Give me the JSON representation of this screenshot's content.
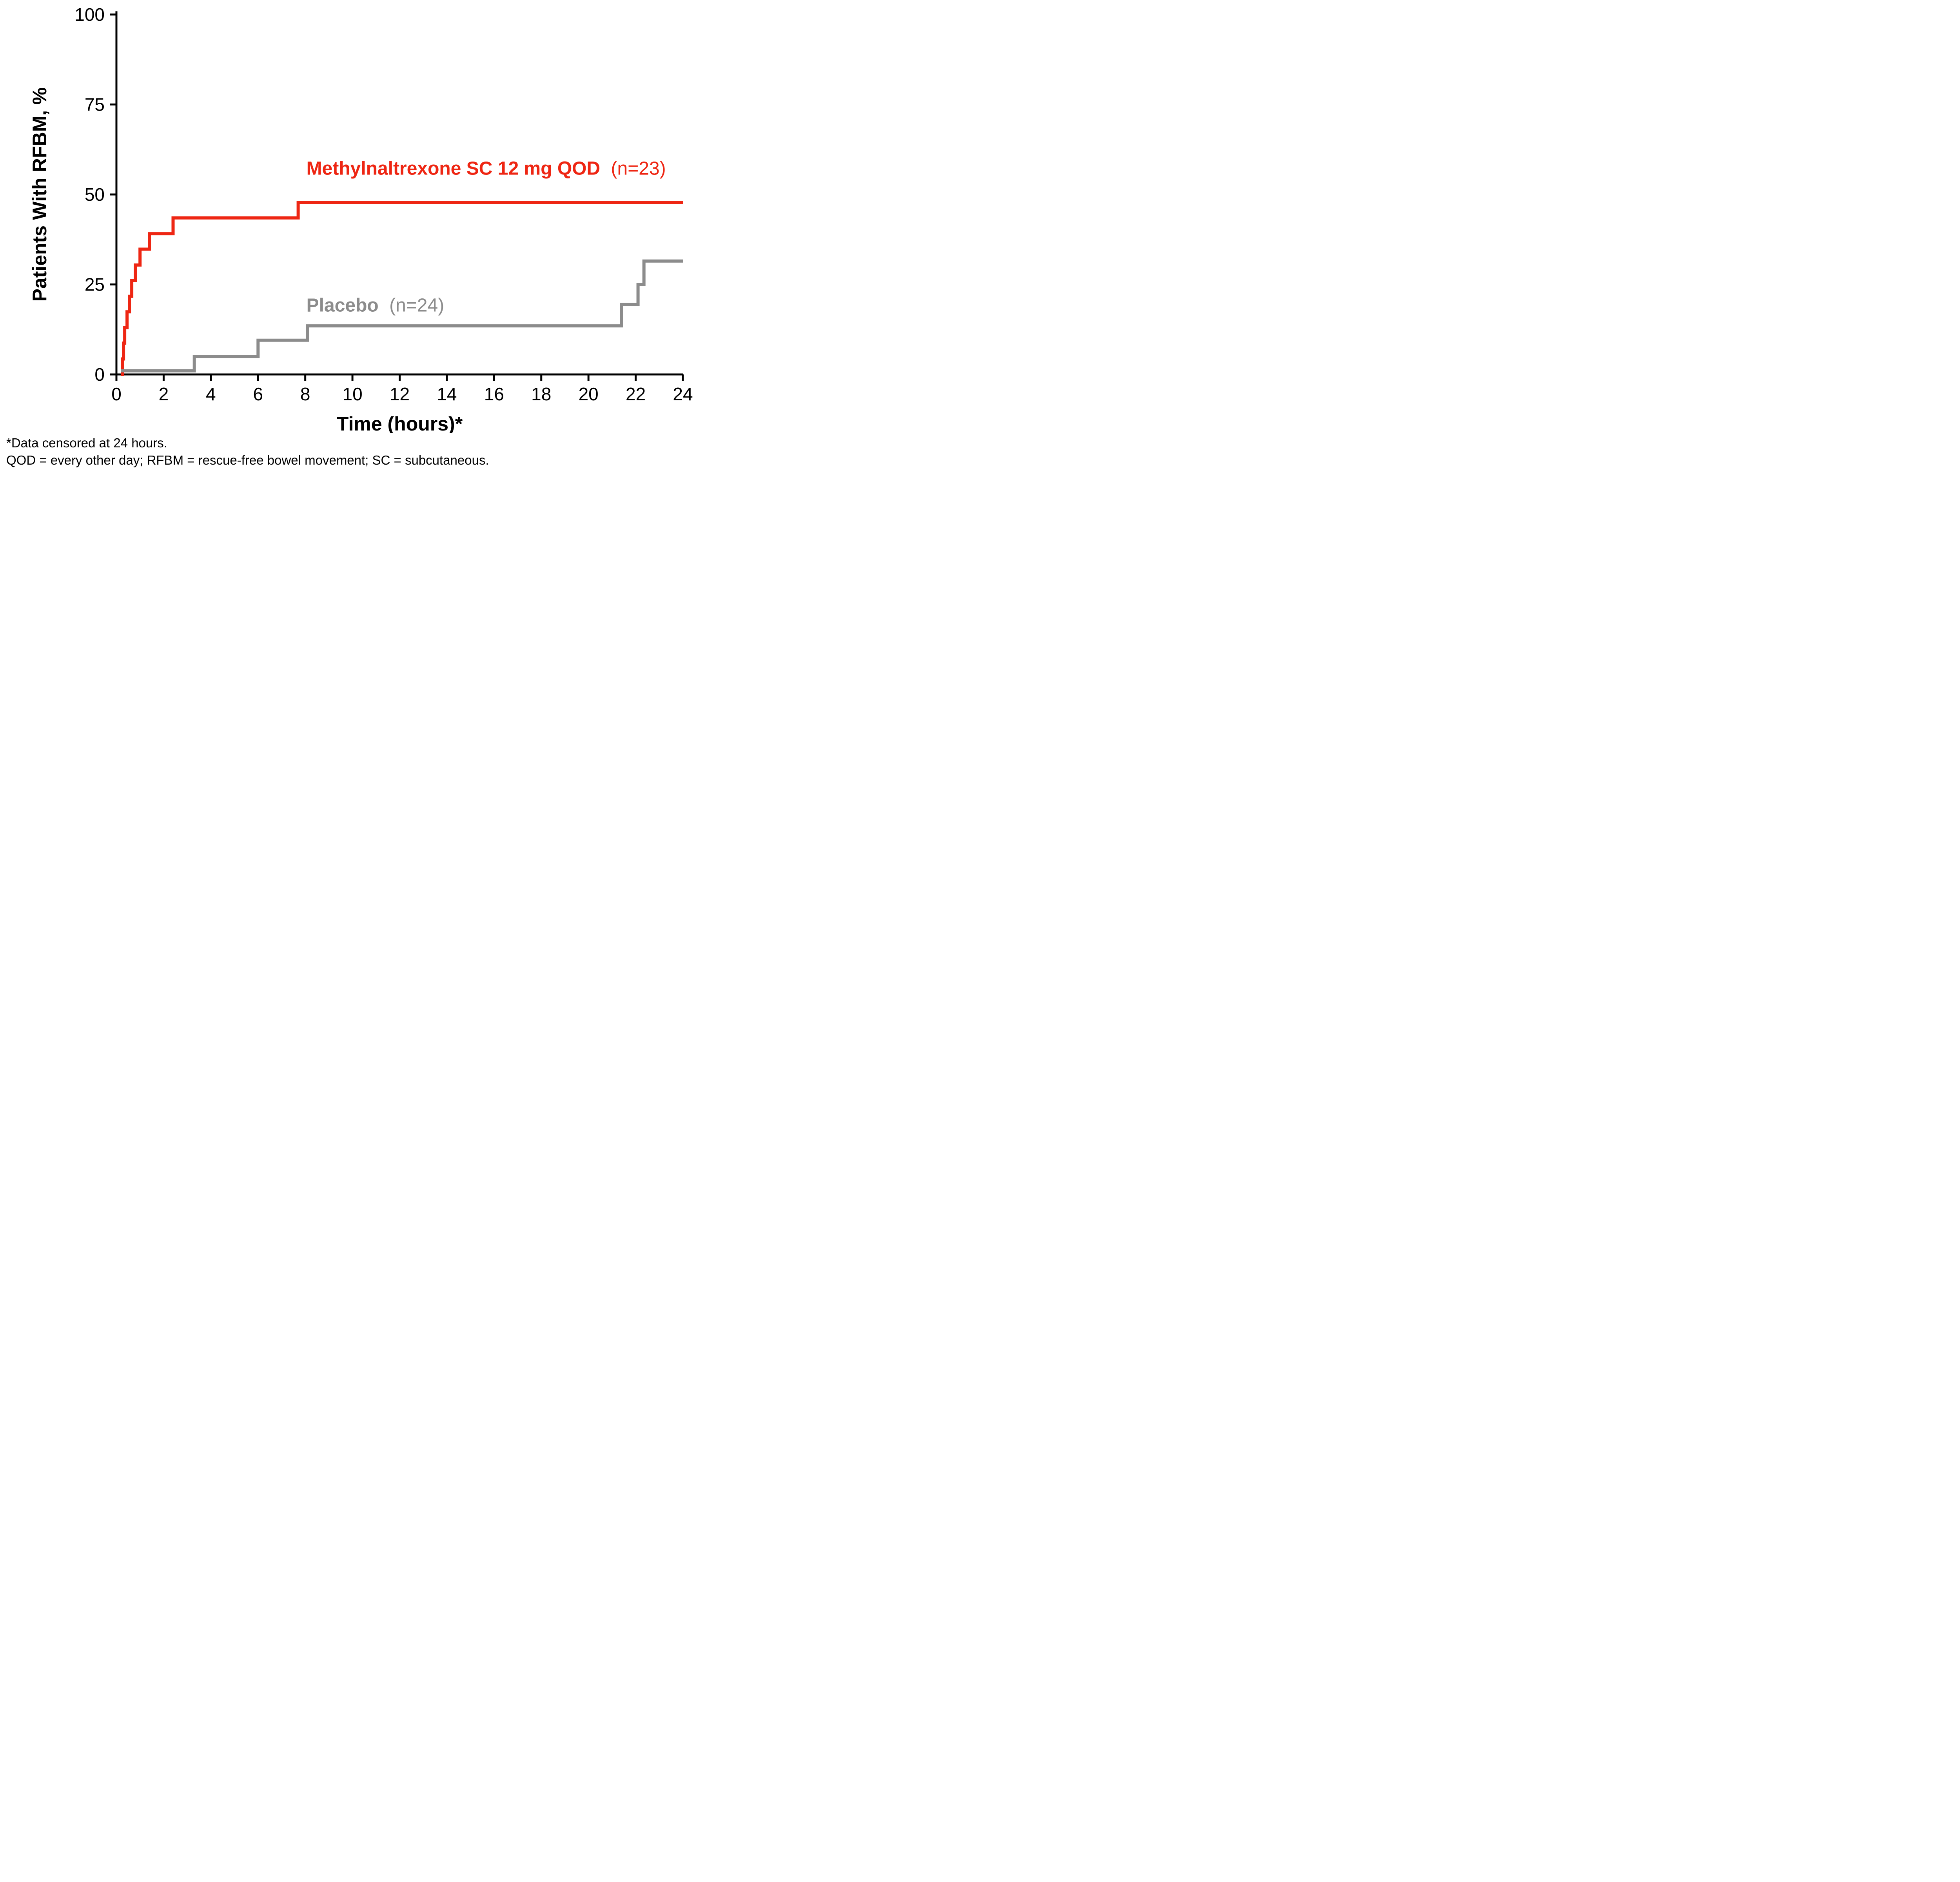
{
  "chart_data": {
    "type": "line",
    "subtype": "kaplan-meier-step",
    "title": "",
    "xlabel": "Time (hours)*",
    "ylabel": "Patients With RFBM, %",
    "xlim": [
      0,
      24
    ],
    "ylim": [
      0,
      100
    ],
    "xticks": [
      0,
      2,
      4,
      6,
      8,
      10,
      12,
      14,
      16,
      18,
      20,
      22,
      24
    ],
    "yticks": [
      0,
      25,
      50,
      75,
      100
    ],
    "grid": false,
    "legend_position": "inline-annotations",
    "series": [
      {
        "name": "Methylnaltrexone SC 12 mg QOD",
        "n_label": "(n=23)",
        "color": "#EE2613",
        "label_pos": {
          "x": 8.05,
          "y": 55.5
        },
        "points": [
          [
            0.2,
            0
          ],
          [
            0.25,
            4.3
          ],
          [
            0.3,
            8.7
          ],
          [
            0.35,
            13.0
          ],
          [
            0.45,
            17.4
          ],
          [
            0.55,
            21.7
          ],
          [
            0.65,
            26.1
          ],
          [
            0.8,
            30.4
          ],
          [
            1.0,
            34.8
          ],
          [
            1.4,
            39.1
          ],
          [
            2.4,
            43.5
          ],
          [
            7.7,
            47.8
          ],
          [
            24,
            47.8
          ]
        ]
      },
      {
        "name": "Placebo",
        "n_label": "(n=24)",
        "color": "#8C8C8C",
        "label_pos": {
          "x": 8.05,
          "y": 17.5
        },
        "points": [
          [
            0.2,
            1.0
          ],
          [
            3.3,
            5.0
          ],
          [
            6.0,
            9.5
          ],
          [
            8.1,
            13.5
          ],
          [
            21.4,
            19.5
          ],
          [
            22.1,
            25.0
          ],
          [
            22.35,
            31.5
          ],
          [
            24,
            31.5
          ]
        ]
      }
    ]
  },
  "footnotes": [
    "*Data censored at 24 hours.",
    "QOD = every other day; RFBM = rescue-free bowel movement; SC = subcutaneous."
  ]
}
